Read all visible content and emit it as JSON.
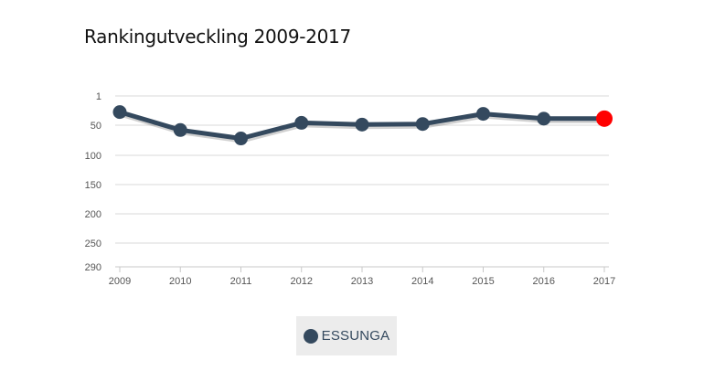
{
  "chart_data": {
    "type": "line",
    "title": "Rankingutveckling 2009-2017",
    "xlabel": "",
    "ylabel": "",
    "x": [
      "2009",
      "2010",
      "2011",
      "2012",
      "2013",
      "2014",
      "2015",
      "2016",
      "2017"
    ],
    "y_ticks": [
      "1",
      "50",
      "100",
      "150",
      "200",
      "250",
      "290"
    ],
    "ylim": [
      290,
      1
    ],
    "y_inverted": true,
    "grid": true,
    "legend_position": "bottom-center",
    "series": [
      {
        "name": "ESSUNGA",
        "values": [
          28,
          58,
          72,
          46,
          49,
          48,
          31,
          39,
          39
        ],
        "color": "#34495e",
        "last_point_color": "#ff0000"
      }
    ]
  }
}
